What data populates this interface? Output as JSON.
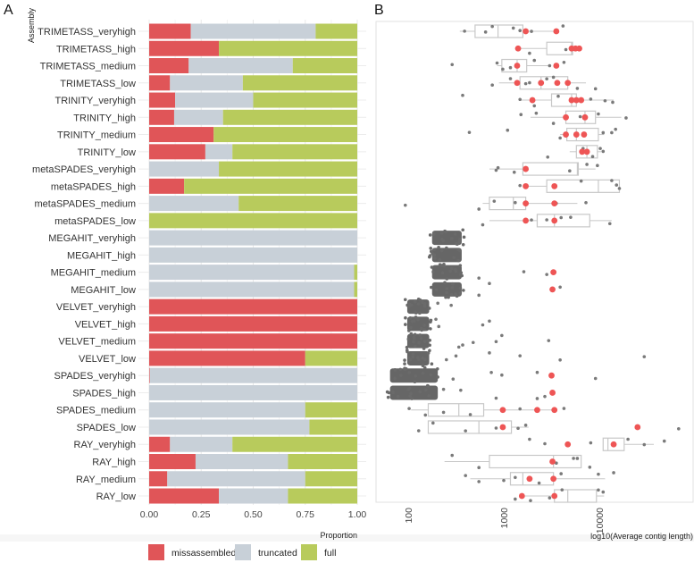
{
  "colors": {
    "missassembled": "#E05558",
    "truncated": "#C8D0D8",
    "full": "#B8CB5C",
    "point_grey": "#7a7a7a",
    "point_red": "#EE5555",
    "box": "#c8c8c8"
  },
  "chart_data": [
    {
      "panel": "A",
      "type": "bar",
      "orientation": "horizontal",
      "stacked": true,
      "ylabel": "Assembly",
      "xlabel": "Proportion",
      "xlim": [
        0,
        1
      ],
      "xticks": [
        "0.00",
        "0.25",
        "0.50",
        "0.75",
        "1.00"
      ],
      "legend": {
        "placement": "bottom",
        "entries": [
          "missassembled",
          "truncated",
          "full"
        ]
      },
      "categories": [
        "TRIMETASS_veryhigh",
        "TRIMETASS_high",
        "TRIMETASS_medium",
        "TRIMETASS_low",
        "TRINITY_veryhigh",
        "TRINITY_high",
        "TRINITY_medium",
        "TRINITY_low",
        "metaSPADES_veryhigh",
        "metaSPADES_high",
        "metaSPADES_medium",
        "metaSPADES_low",
        "MEGAHIT_veryhigh",
        "MEGAHIT_high",
        "MEGAHIT_medium",
        "MEGAHIT_low",
        "VELVET_veryhigh",
        "VELVET_high",
        "VELVET_medium",
        "VELVET_low",
        "SPADES_veryhigh",
        "SPADES_high",
        "SPADES_medium",
        "SPADES_low",
        "RAY_veryhigh",
        "RAY_high",
        "RAY_medium",
        "RAY_low"
      ],
      "series": [
        {
          "name": "missassembled",
          "values": [
            0.2,
            0.335,
            0.19,
            0.1,
            0.125,
            0.12,
            0.31,
            0.27,
            0,
            0.168,
            0,
            0,
            0,
            0,
            0,
            0,
            1,
            1,
            1,
            0.75,
            0.003,
            0,
            0,
            0,
            0.1,
            0.223,
            0.087,
            0.335
          ]
        },
        {
          "name": "truncated",
          "values": [
            0.6,
            0,
            0.5,
            0.35,
            0.375,
            0.235,
            0,
            0.13,
            0.335,
            0,
            0.43,
            0,
            1,
            1,
            0.985,
            0.985,
            0,
            0,
            0,
            0,
            0.997,
            1,
            0.75,
            0.77,
            0.3,
            0.444,
            0.663,
            0.332
          ]
        },
        {
          "name": "full",
          "values": [
            0.2,
            0.665,
            0.31,
            0.55,
            0.5,
            0.645,
            0.69,
            0.6,
            0.665,
            0.832,
            0.57,
            1,
            0,
            0,
            0.015,
            0.015,
            0,
            0,
            0,
            0.25,
            0,
            0,
            0.25,
            0.23,
            0.6,
            0.333,
            0.25,
            0.333
          ]
        }
      ]
    },
    {
      "panel": "B",
      "type": "boxplot",
      "xlabel": "log10(Average contig length)",
      "xscale": "log10",
      "xlim_log10": [
        1.7,
        5.0
      ],
      "xticks": [
        "100",
        "1000",
        "10000"
      ],
      "xtick_log10": [
        2,
        3,
        4
      ],
      "note": "values in log10 units; rows follow panel A categories",
      "rows": [
        {
          "box": [
            2.54,
            2.7,
            2.94,
            3.2,
            3.55
          ],
          "red": [
            3.23,
            3.55
          ],
          "grey": [
            2.59,
            2.81,
            2.88,
            3.1,
            3.17,
            3.29,
            3.62
          ]
        },
        {
          "box": [
            3.12,
            3.45,
            3.71,
            3.72,
            3.79
          ],
          "red": [
            3.15,
            3.71,
            3.75,
            3.79
          ],
          "grey": [
            3.27,
            3.65
          ]
        },
        {
          "box": [
            2.93,
            2.98,
            3.14,
            3.24,
            3.49
          ],
          "red": [
            3.14,
            3.55
          ],
          "grey": [
            2.46,
            2.93,
            2.99,
            3.07,
            3.32,
            3.48,
            3.63
          ]
        },
        {
          "box": [
            2.95,
            3.17,
            3.39,
            3.67,
            3.86
          ],
          "red": [
            3.14,
            3.39,
            3.56,
            3.67
          ],
          "grey": [
            2.88,
            3.07,
            3.23,
            3.27,
            3.45,
            3.52,
            3.77,
            3.96
          ]
        },
        {
          "box": [
            3.16,
            3.5,
            3.71,
            3.76,
            4.15
          ],
          "red": [
            3.3,
            3.71,
            3.76,
            3.81
          ],
          "grey": [
            2.57,
            3.17,
            3.32,
            3.57,
            3.91,
            4.06,
            4.14
          ]
        },
        {
          "box": [
            3.28,
            3.65,
            3.85,
            3.96,
            4.23
          ],
          "red": [
            3.65,
            3.85
          ],
          "grey": [
            3.18,
            3.34,
            3.52,
            3.8,
            3.99,
            4.28
          ]
        },
        {
          "box": [
            3.59,
            3.66,
            3.76,
            3.99,
            4.05
          ],
          "red": [
            3.65,
            3.76,
            3.84
          ],
          "grey": [
            2.64,
            3.04,
            3.59,
            4.04,
            4.13,
            4.17
          ]
        },
        {
          "box": [
            3.69,
            3.76,
            3.87,
            3.98,
            4.02
          ],
          "red": [
            3.82,
            3.87
          ],
          "grey": [
            3.46,
            3.83,
            3.93,
            4.04,
            4.01
          ]
        },
        {
          "box": [
            2.85,
            3.2,
            3.77,
            3.78,
            3.96
          ],
          "red": [
            3.23
          ],
          "grey": [
            2.92,
            2.94,
            3.11,
            3.69,
            3.87,
            3.98
          ]
        },
        {
          "box": [
            3.23,
            3.45,
            3.99,
            4.21,
            4.21
          ],
          "red": [
            3.23,
            3.53
          ],
          "grey": [
            3.17,
            3.81,
            4.13,
            4.18,
            4.21
          ]
        },
        {
          "box": [
            2.78,
            2.85,
            3.1,
            3.23,
            3.77
          ],
          "red": [
            3.23,
            3.53
          ],
          "grey": [
            1.97,
            2.74,
            2.9,
            3.12,
            3.55,
            3.86
          ]
        },
        {
          "box": [
            2.85,
            3.35,
            3.53,
            3.9,
            4.13
          ],
          "red": [
            3.23,
            3.53
          ],
          "grey": [
            2.78,
            3.29,
            3.45,
            3.6,
            3.7,
            4.11
          ]
        },
        {
          "dense": [
            2.25,
            2.56
          ],
          "red": [],
          "grey": []
        },
        {
          "dense": [
            2.25,
            2.56
          ],
          "red": [],
          "grey": []
        },
        {
          "dense": [
            2.25,
            2.56
          ],
          "red": [
            3.52
          ],
          "grey": [
            3.45,
            3.21,
            2.74
          ]
        },
        {
          "dense": [
            2.25,
            2.56
          ],
          "red": [
            3.51
          ],
          "grey": [
            3.59,
            2.85,
            2.74
          ]
        },
        {
          "dense": [
            1.99,
            2.22
          ],
          "red": [],
          "grey": [
            2.31,
            2.45
          ]
        },
        {
          "dense": [
            1.99,
            2.22
          ],
          "red": [],
          "grey": [
            2.32,
            2.85,
            2.78,
            2.29
          ]
        },
        {
          "dense": [
            1.99,
            2.22
          ],
          "red": [],
          "grey": [
            2.53,
            2.57,
            2.68,
            2.92,
            2.98,
            3.47
          ]
        },
        {
          "dense": [
            1.99,
            2.22
          ],
          "red": [],
          "grey": [
            2.5,
            2.4,
            2.85,
            3.59,
            4.47,
            3.17
          ]
        },
        {
          "dense": [
            1.81,
            2.31
          ],
          "red": [
            3.5
          ],
          "grey": [
            3.96,
            2.98,
            3.35,
            2.47,
            2.87
          ]
        },
        {
          "dense": [
            1.81,
            2.31
          ],
          "red": [
            3.51
          ],
          "grey": [
            3.35,
            3.43,
            2.92,
            2.37,
            2.55
          ]
        },
        {
          "box": [
            2.03,
            2.21,
            2.53,
            2.79,
            3.52
          ],
          "red": [
            2.99,
            3.35,
            3.53
          ],
          "grey": [
            2.01,
            2.18,
            2.37,
            2.65,
            3.17,
            3.63
          ]
        },
        {
          "box": [
            2.21,
            2.21,
            2.74,
            3.08,
            3.26
          ],
          "red": [
            2.99,
            4.4
          ],
          "grey": [
            2.11,
            2.26,
            2.6,
            2.92,
            3.15,
            3.23,
            4.83
          ]
        },
        {
          "box": [
            4.04,
            4.04,
            4.09,
            4.26,
            4.57
          ],
          "red": [
            3.67,
            4.15
          ],
          "grey": [
            3.27,
            3.43,
            3.91,
            4.3,
            4.47,
            4.68
          ]
        },
        {
          "box": [
            2.38,
            2.85,
            3.52,
            3.81,
            3.81
          ],
          "red": [
            3.51
          ],
          "grey": [
            2.46,
            2.74,
            3.55,
            3.77,
            3.73,
            3.9
          ]
        },
        {
          "box": [
            2.65,
            3.07,
            3.2,
            3.52,
            4.06
          ],
          "red": [
            3.27,
            3.52
          ],
          "grey": [
            2.6,
            2.74,
            3.0,
            3.12,
            3.37,
            3.6,
            3.99,
            4.15
          ]
        },
        {
          "box": [
            3.19,
            3.53,
            3.67,
            3.97,
            4.05
          ],
          "red": [
            3.19,
            3.53
          ],
          "grey": [
            3.12,
            3.28,
            3.48,
            3.61,
            3.99,
            4.04
          ]
        }
      ]
    }
  ],
  "panels": {
    "a_label": "A",
    "b_label": "B"
  }
}
